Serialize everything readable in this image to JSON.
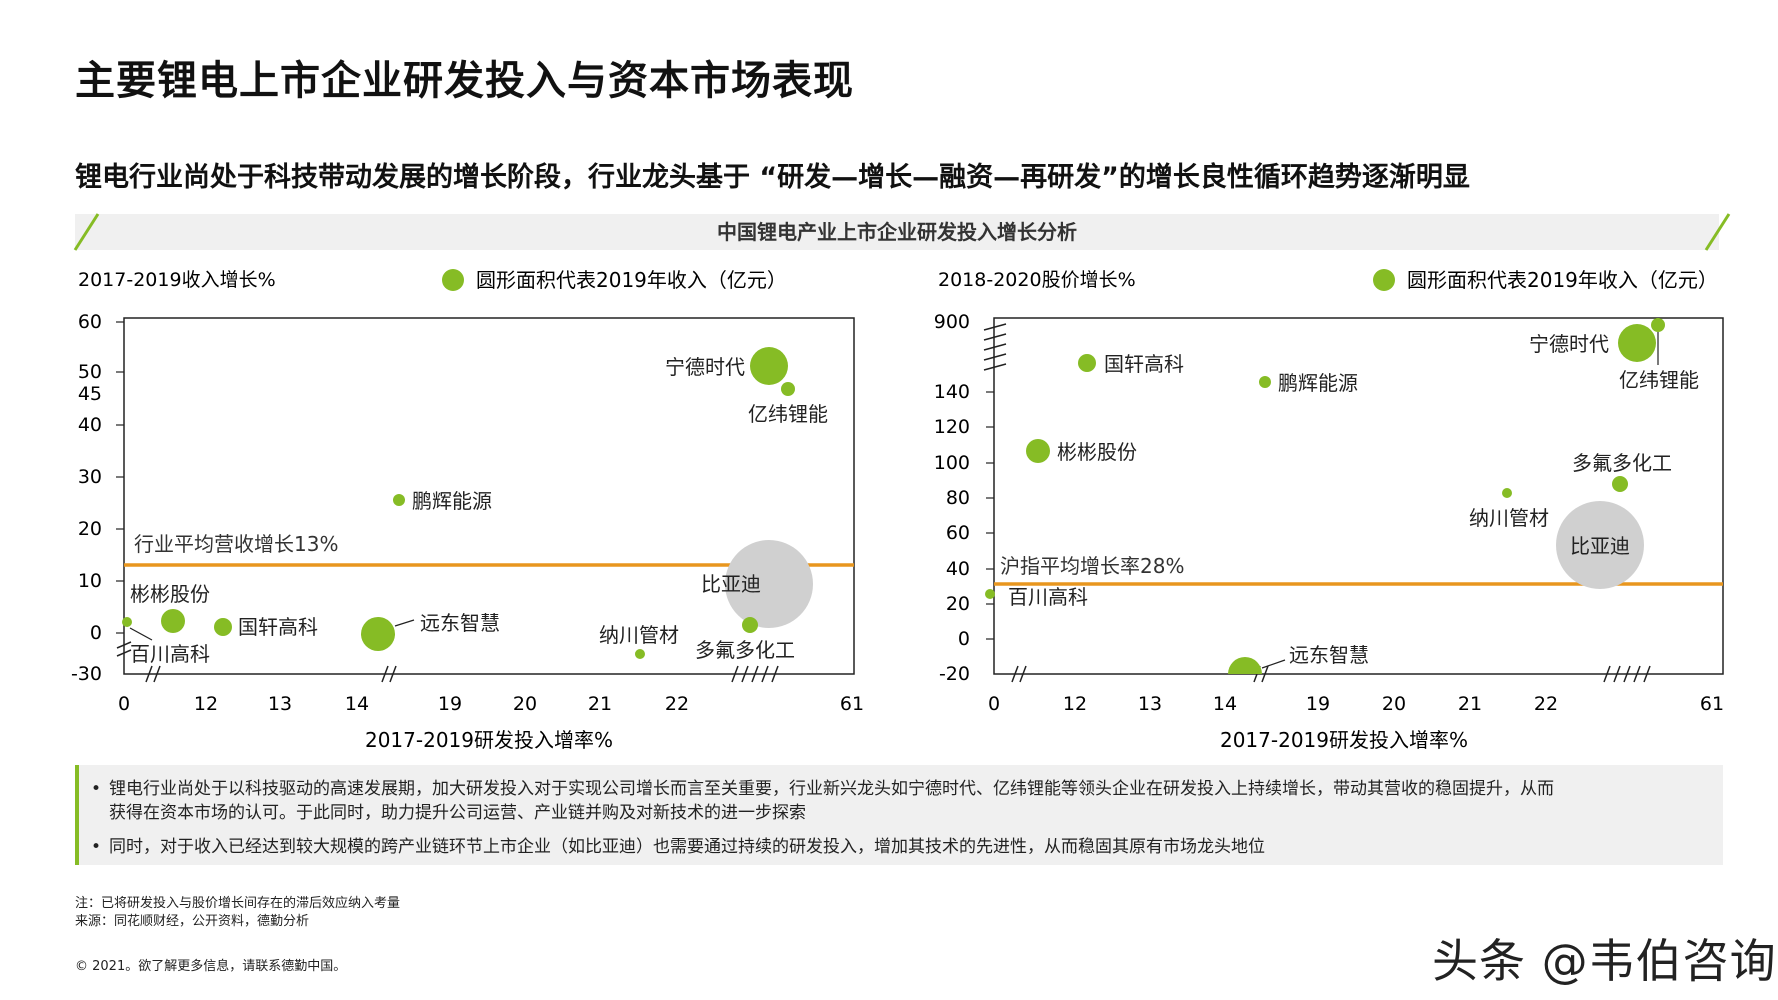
{
  "page": {
    "title": "主要锂电上市企业研发投入与资本市场表现",
    "subtitle": "锂电行业尚处于科技带动发展的增长阶段，行业龙头基于 “研发—增长—融资—再研发”的增长良性循环趋势逐渐明显",
    "section_title": "中国锂电产业上市企业研发投入增长分析"
  },
  "notes": [
    "锂电行业尚处于以科技驱动的高速发展期，加大研发投入对于实现公司增长而言至关重要，行业新兴龙头如宁德时代、亿纬锂能等领头企业在研发投入上持续增长，带动其营收的稳固提升，从而",
    "获得在资本市场的认可。于此同时，助力提升公司运营、产业链并购及对新技术的进一步探索",
    "同时，对于收入已经达到较大规模的跨产业链环节上市企业（如比亚迪）也需要通过持续的研发投入，增加其技术的先进性，从而稳固其原有市场龙头地位"
  ],
  "footer": {
    "note": "注：已将研发投入与股价增长间存在的滞后效应纳入考量",
    "source": "来源：同花顺财经，公开资料，德勤分析",
    "copyright": "© 2021。欲了解更多信息，请联系德勤中国。",
    "watermark": "头条 @韦伯咨询"
  },
  "colors": {
    "accent": "#86bc25",
    "avg_line": "#e8961e",
    "byd_bubble": "#d0d0d0",
    "axis": "#222222"
  },
  "chart_data": [
    {
      "type": "scatter",
      "ylabel": "2017-2019收入增长%",
      "xlabel": "2017-2019研发投入增率%",
      "legend": "圆形面积代表2019年收入（亿元）",
      "x_ticks": [
        "0",
        "12",
        "13",
        "14",
        "19",
        "20",
        "21",
        "22",
        "61"
      ],
      "y_ticks": [
        "60",
        "50",
        "45",
        "40",
        "30",
        "20",
        "10",
        "0",
        "-30"
      ],
      "axis_breaks": "x between 0 and 12, 14 and 19, 22 and 61; y between 0 and -30",
      "reference_line": {
        "label": "行业平均营收增长13%",
        "y": 13
      },
      "points": [
        {
          "name": "宁德时代",
          "x": 25,
          "y": 53,
          "size": "large"
        },
        {
          "name": "亿纬锂能",
          "x": 26,
          "y": 48,
          "size": "small"
        },
        {
          "name": "鹏辉能源",
          "x": 15.3,
          "y": 26,
          "size": "small"
        },
        {
          "name": "比亚迪",
          "x": 24,
          "y": 9.5,
          "size": "largest"
        },
        {
          "name": "彬彬股份",
          "x": 11.5,
          "y": 2.5,
          "size": "medium"
        },
        {
          "name": "百川高科",
          "x": 1,
          "y": 2,
          "size": "small"
        },
        {
          "name": "国轩高科",
          "x": 12.3,
          "y": 1.5,
          "size": "medium"
        },
        {
          "name": "远东智慧",
          "x": 14.3,
          "y": 0,
          "size": "large"
        },
        {
          "name": "纳川管材",
          "x": 21.5,
          "y": -4,
          "size": "small"
        },
        {
          "name": "多氟多化工",
          "x": 24.5,
          "y": 2,
          "size": "small"
        }
      ]
    },
    {
      "type": "scatter",
      "ylabel": "2018-2020股价增长%",
      "xlabel": "2017-2019研发投入增率%",
      "legend": "圆形面积代表2019年收入（亿元）",
      "x_ticks": [
        "0",
        "12",
        "13",
        "14",
        "19",
        "20",
        "21",
        "22",
        "61"
      ],
      "y_ticks": [
        "900",
        "140",
        "120",
        "100",
        "80",
        "60",
        "40",
        "20",
        "0",
        "-20"
      ],
      "axis_breaks": "x between 0 and 12, 14 and 19, 22 and 61; y between 140 and 900",
      "reference_line": {
        "label": "沪指平均增长率28%",
        "y": 28
      },
      "points": [
        {
          "name": "宁德时代",
          "x": 27,
          "y": 850,
          "size": "large"
        },
        {
          "name": "亿纬锂能",
          "x": 28,
          "y": 900,
          "size": "small"
        },
        {
          "name": "国轩高科",
          "x": 12.3,
          "y": 200,
          "size": "medium"
        },
        {
          "name": "鹏辉能源",
          "x": 15.5,
          "y": 145,
          "size": "small"
        },
        {
          "name": "彬彬股份",
          "x": 11.3,
          "y": 106,
          "size": "medium"
        },
        {
          "name": "多氟多化工",
          "x": 26,
          "y": 87,
          "size": "medium"
        },
        {
          "name": "纳川管材",
          "x": 21.5,
          "y": 81,
          "size": "small"
        },
        {
          "name": "比亚迪",
          "x": 24,
          "y": 53,
          "size": "largest"
        },
        {
          "name": "百川高科",
          "x": 0,
          "y": 23,
          "size": "small"
        },
        {
          "name": "远东智慧",
          "x": 14.3,
          "y": -20,
          "size": "large"
        }
      ]
    }
  ]
}
